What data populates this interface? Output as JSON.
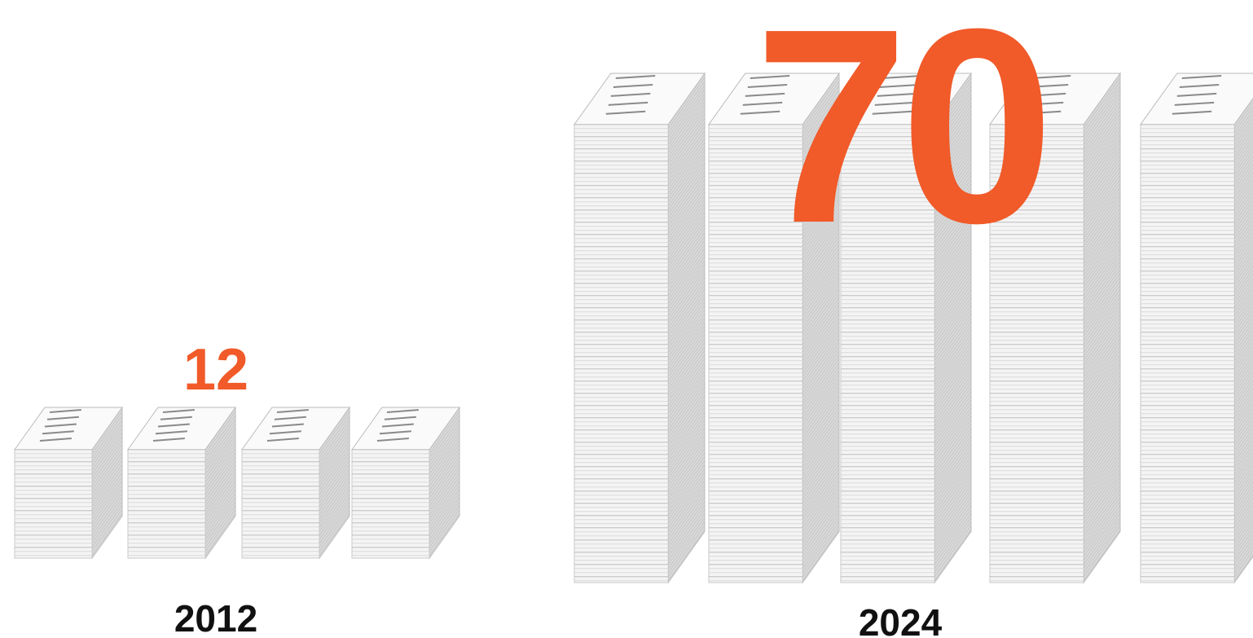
{
  "groups": [
    {
      "year": "2012",
      "count": 12
    },
    {
      "year": "2024",
      "count": 70
    }
  ]
}
